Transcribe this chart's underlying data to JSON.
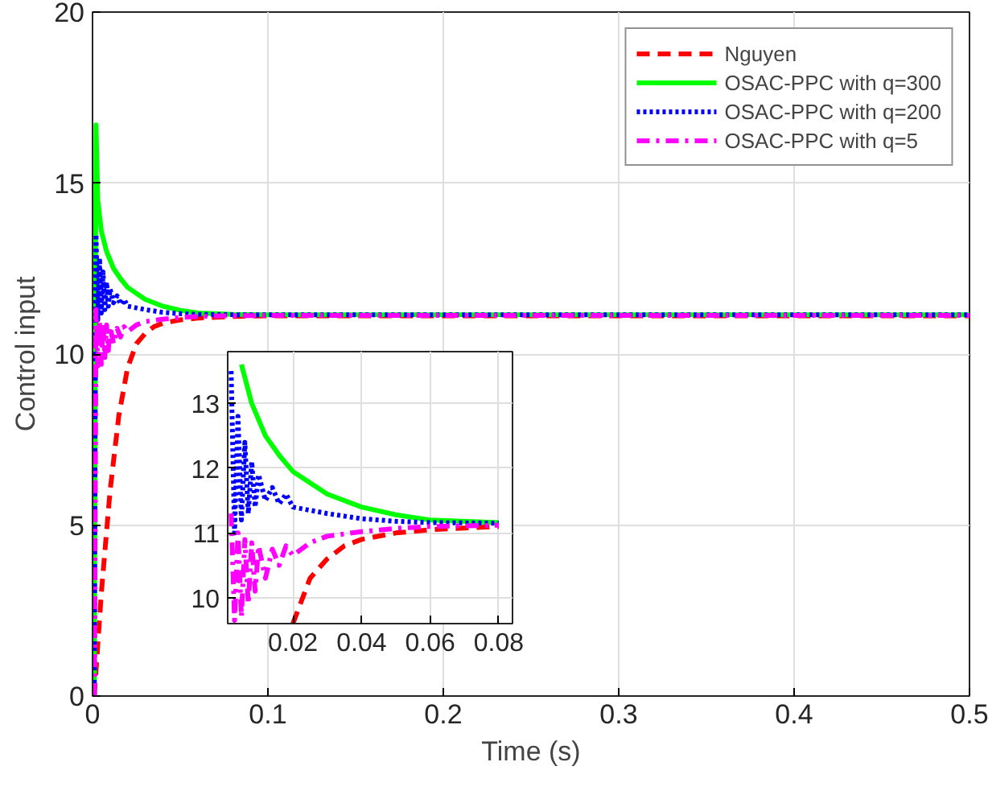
{
  "chart_data": [
    {
      "type": "line",
      "xlabel": "Time (s)",
      "ylabel": "Control input",
      "xlim": [
        0,
        0.5
      ],
      "ylim": [
        0,
        20
      ],
      "xticks": [
        0,
        0.1,
        0.2,
        0.3,
        0.4,
        0.5
      ],
      "yticks": [
        0,
        5,
        10,
        15,
        20
      ],
      "grid": true,
      "legend": "top right",
      "series": [
        {
          "name": "Nguyen",
          "color": "#ff0000",
          "line_style": "dashed",
          "x": [
            0.001,
            0.005,
            0.01,
            0.015,
            0.02,
            0.025,
            0.03,
            0.035,
            0.04,
            0.05,
            0.06,
            0.08,
            0.1,
            0.5
          ],
          "values": [
            0,
            3,
            6,
            8.2,
            9.6,
            10.3,
            10.6,
            10.8,
            10.9,
            11.0,
            11.05,
            11.1,
            11.12,
            11.12
          ]
        },
        {
          "name": "OSAC-PPC with q=300",
          "color": "#00ff00",
          "line_style": "solid",
          "x": [
            0.001,
            0.0015,
            0.002,
            0.003,
            0.005,
            0.008,
            0.012,
            0.016,
            0.02,
            0.03,
            0.04,
            0.05,
            0.06,
            0.08,
            0.1,
            0.5
          ],
          "values": [
            0,
            10,
            16.7,
            14.5,
            13.6,
            13.0,
            12.5,
            12.2,
            11.95,
            11.6,
            11.4,
            11.28,
            11.2,
            11.16,
            11.15,
            11.15
          ]
        },
        {
          "name": "OSAC-PPC with q=200",
          "color": "#0000ff",
          "line_style": "dotted",
          "x": [
            0.001,
            0.0015,
            0.002,
            0.003,
            0.004,
            0.005,
            0.006,
            0.007,
            0.008,
            0.009,
            0.01,
            0.012,
            0.014,
            0.016,
            0.018,
            0.02,
            0.025,
            0.03,
            0.04,
            0.05,
            0.06,
            0.08,
            0.1,
            0.5
          ],
          "values": [
            0,
            8,
            13.5,
            11,
            12.8,
            11.2,
            12.4,
            11.3,
            12.1,
            11.4,
            11.9,
            11.5,
            11.7,
            11.45,
            11.6,
            11.4,
            11.35,
            11.3,
            11.22,
            11.18,
            11.16,
            11.15,
            11.15,
            11.15
          ]
        },
        {
          "name": "OSAC-PPC with q=5",
          "color": "#ff00ff",
          "line_style": "dashdot",
          "x": [
            0.001,
            0.0015,
            0.002,
            0.003,
            0.004,
            0.005,
            0.006,
            0.007,
            0.008,
            0.009,
            0.01,
            0.012,
            0.014,
            0.016,
            0.018,
            0.02,
            0.025,
            0.03,
            0.04,
            0.05,
            0.06,
            0.08,
            0.1,
            0.5
          ],
          "values": [
            0,
            5,
            11.3,
            9.65,
            11,
            9.7,
            10.9,
            9.9,
            10.85,
            10.1,
            10.8,
            10.3,
            10.75,
            10.5,
            10.8,
            10.65,
            10.85,
            10.95,
            11.02,
            11.07,
            11.1,
            11.12,
            11.13,
            11.13
          ]
        }
      ]
    },
    {
      "type": "line",
      "xlim": [
        0.001,
        0.084
      ],
      "ylim": [
        9.6,
        13.8
      ],
      "xticks": [
        0.02,
        0.04,
        0.06,
        0.08
      ],
      "yticks": [
        10,
        11,
        12,
        13
      ],
      "grid": true,
      "series": [
        {
          "color": "#ff0000",
          "line_style": "dashed",
          "x": [
            0.02,
            0.025,
            0.03,
            0.035,
            0.04,
            0.05,
            0.06,
            0.08
          ],
          "values": [
            9.6,
            10.3,
            10.6,
            10.8,
            10.9,
            11.0,
            11.05,
            11.1
          ]
        },
        {
          "color": "#00ff00",
          "line_style": "solid",
          "x": [
            0.005,
            0.008,
            0.012,
            0.016,
            0.02,
            0.03,
            0.04,
            0.05,
            0.06,
            0.08
          ],
          "values": [
            13.6,
            13.0,
            12.5,
            12.2,
            11.95,
            11.6,
            11.4,
            11.28,
            11.2,
            11.16
          ]
        },
        {
          "color": "#0000ff",
          "line_style": "dotted",
          "x": [
            0.002,
            0.003,
            0.004,
            0.005,
            0.006,
            0.007,
            0.008,
            0.009,
            0.01,
            0.012,
            0.014,
            0.016,
            0.018,
            0.02,
            0.025,
            0.03,
            0.04,
            0.05,
            0.06,
            0.08
          ],
          "values": [
            13.5,
            11,
            12.8,
            11.2,
            12.4,
            11.3,
            12.1,
            11.4,
            11.9,
            11.5,
            11.7,
            11.45,
            11.6,
            11.4,
            11.35,
            11.3,
            11.22,
            11.18,
            11.16,
            11.15
          ]
        },
        {
          "color": "#ff00ff",
          "line_style": "dashdot",
          "x": [
            0.002,
            0.003,
            0.004,
            0.005,
            0.006,
            0.007,
            0.008,
            0.009,
            0.01,
            0.012,
            0.014,
            0.016,
            0.018,
            0.02,
            0.025,
            0.03,
            0.04,
            0.05,
            0.06,
            0.08
          ],
          "values": [
            11.3,
            9.65,
            11,
            9.7,
            10.9,
            9.9,
            10.85,
            10.1,
            10.8,
            10.3,
            10.75,
            10.5,
            10.8,
            10.65,
            10.85,
            10.95,
            11.02,
            11.07,
            11.1,
            11.12
          ]
        }
      ]
    }
  ]
}
